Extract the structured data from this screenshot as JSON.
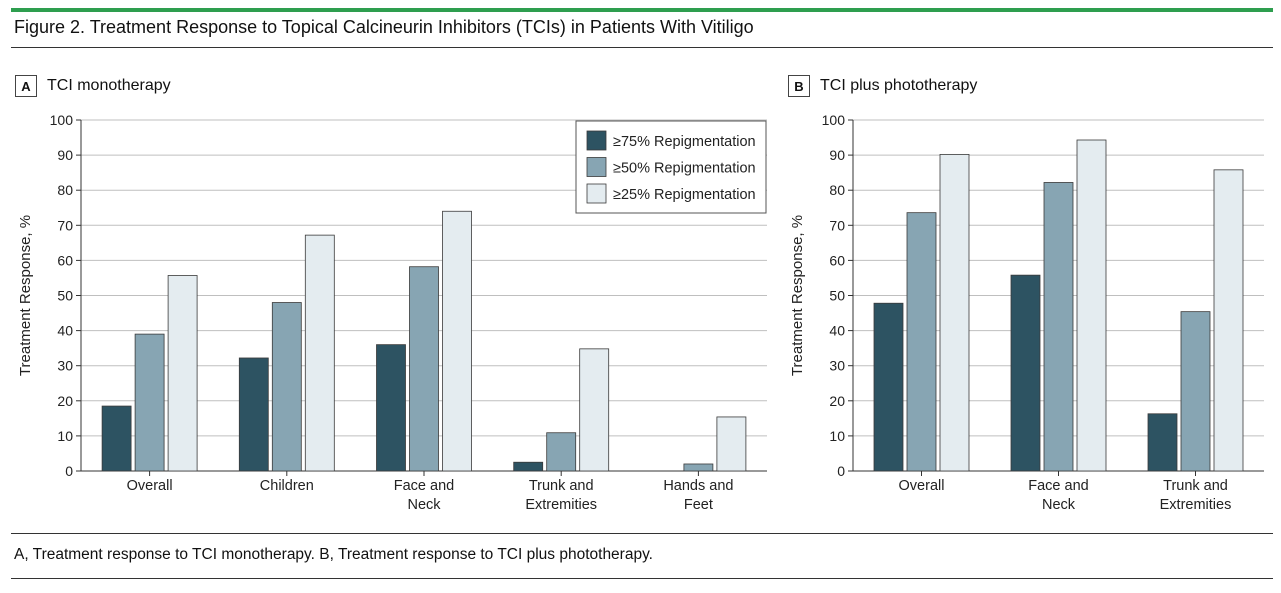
{
  "figure": {
    "title": "Figure 2. Treatment Response to Topical Calcineurin Inhibitors (TCIs) in Patients With Vitiligo",
    "caption": "A, Treatment response to TCI monotherapy. B, Treatment response to TCI plus phototherapy."
  },
  "colors": {
    "accent": "#2e9e4f",
    "series": [
      "#2d5362",
      "#87a5b3",
      "#e4ecf0"
    ],
    "grid": "#bfbfbf"
  },
  "panels": [
    {
      "letter": "A",
      "title": "TCI monotherapy"
    },
    {
      "letter": "B",
      "title": "TCI plus phototherapy"
    }
  ],
  "chart_data": [
    {
      "type": "bar",
      "title": "TCI monotherapy",
      "ylabel": "Treatment Response, %",
      "xlabel": "",
      "ylim": [
        0,
        100
      ],
      "yticks": [
        0,
        10,
        20,
        30,
        40,
        50,
        60,
        70,
        80,
        90,
        100
      ],
      "grid": true,
      "legend": "top-right",
      "categories": [
        [
          "Overall"
        ],
        [
          "Children"
        ],
        [
          "Face and",
          "Neck"
        ],
        [
          "Trunk and",
          "Extremities"
        ],
        [
          "Hands and",
          "Feet"
        ]
      ],
      "series": [
        {
          "name": "≥75% Repigmentation",
          "values": [
            18.5,
            32.2,
            36,
            2.5,
            0
          ]
        },
        {
          "name": "≥50% Repigmentation",
          "values": [
            39,
            48,
            58.2,
            10.9,
            2
          ]
        },
        {
          "name": "≥25% Repigmentation",
          "values": [
            55.7,
            67.2,
            74,
            34.8,
            15.4
          ]
        }
      ]
    },
    {
      "type": "bar",
      "title": "TCI plus phototherapy",
      "ylabel": "Treatment Response, %",
      "xlabel": "",
      "ylim": [
        0,
        100
      ],
      "yticks": [
        0,
        10,
        20,
        30,
        40,
        50,
        60,
        70,
        80,
        90,
        100
      ],
      "grid": true,
      "legend": "none",
      "categories": [
        [
          "Overall"
        ],
        [
          "Face and",
          "Neck"
        ],
        [
          "Trunk and",
          "Extremities"
        ]
      ],
      "series": [
        {
          "name": "≥75% Repigmentation",
          "values": [
            47.8,
            55.8,
            16.3
          ]
        },
        {
          "name": "≥50% Repigmentation",
          "values": [
            73.6,
            82.2,
            45.4
          ]
        },
        {
          "name": "≥25% Repigmentation",
          "values": [
            90.2,
            94.3,
            85.8
          ]
        }
      ]
    }
  ]
}
